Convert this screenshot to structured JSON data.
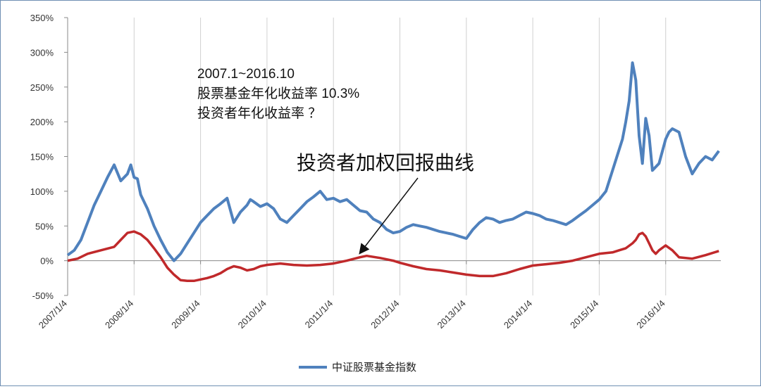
{
  "chart_data": {
    "type": "line",
    "title": "",
    "xlabel": "",
    "ylabel": "",
    "ylim": [
      -50,
      350
    ],
    "xlim": [
      2007.0,
      2016.83
    ],
    "y_ticks": [
      "350%",
      "300%",
      "250%",
      "200%",
      "150%",
      "100%",
      "50%",
      "0%",
      "-50%"
    ],
    "y_tick_values": [
      350,
      300,
      250,
      200,
      150,
      100,
      50,
      0,
      -50
    ],
    "x_ticks": [
      "2007/1/4",
      "2008/1/4",
      "2009/1/4",
      "2010/1/4",
      "2011/1/4",
      "2012/1/4",
      "2013/1/4",
      "2014/1/4",
      "2015/1/4",
      "2016/1/4"
    ],
    "x_tick_values": [
      2007,
      2008,
      2009,
      2010,
      2011,
      2012,
      2013,
      2014,
      2015,
      2016
    ],
    "grid": "vertical",
    "legend_position": "bottom-center",
    "series": [
      {
        "name": "中证股票基金指数",
        "color": "#4f81bd",
        "x": [
          2007.0,
          2007.1,
          2007.2,
          2007.3,
          2007.4,
          2007.5,
          2007.6,
          2007.7,
          2007.8,
          2007.9,
          2007.95,
          2008.0,
          2008.05,
          2008.1,
          2008.15,
          2008.2,
          2008.3,
          2008.4,
          2008.5,
          2008.6,
          2008.7,
          2008.8,
          2008.9,
          2009.0,
          2009.1,
          2009.2,
          2009.3,
          2009.4,
          2009.5,
          2009.6,
          2009.7,
          2009.75,
          2009.8,
          2009.9,
          2010.0,
          2010.1,
          2010.2,
          2010.3,
          2010.4,
          2010.5,
          2010.6,
          2010.7,
          2010.8,
          2010.9,
          2011.0,
          2011.1,
          2011.2,
          2011.3,
          2011.4,
          2011.5,
          2011.6,
          2011.7,
          2011.8,
          2011.9,
          2012.0,
          2012.1,
          2012.2,
          2012.3,
          2012.4,
          2012.5,
          2012.6,
          2012.7,
          2012.8,
          2012.9,
          2013.0,
          2013.1,
          2013.2,
          2013.3,
          2013.4,
          2013.5,
          2013.6,
          2013.7,
          2013.8,
          2013.9,
          2014.0,
          2014.1,
          2014.2,
          2014.3,
          2014.4,
          2014.5,
          2014.6,
          2014.7,
          2014.8,
          2014.9,
          2015.0,
          2015.1,
          2015.2,
          2015.3,
          2015.35,
          2015.4,
          2015.45,
          2015.5,
          2015.55,
          2015.6,
          2015.65,
          2015.7,
          2015.75,
          2015.8,
          2015.9,
          2016.0,
          2016.05,
          2016.1,
          2016.2,
          2016.3,
          2016.4,
          2016.5,
          2016.6,
          2016.7,
          2016.8
        ],
        "y": [
          8,
          15,
          30,
          55,
          80,
          100,
          120,
          138,
          115,
          125,
          138,
          120,
          118,
          95,
          85,
          75,
          50,
          30,
          12,
          0,
          10,
          25,
          40,
          55,
          65,
          75,
          82,
          90,
          55,
          70,
          80,
          88,
          85,
          78,
          82,
          75,
          60,
          55,
          65,
          75,
          85,
          92,
          100,
          88,
          90,
          85,
          88,
          80,
          72,
          70,
          60,
          55,
          45,
          40,
          42,
          48,
          52,
          50,
          48,
          45,
          42,
          40,
          38,
          35,
          32,
          45,
          55,
          62,
          60,
          55,
          58,
          60,
          65,
          70,
          68,
          65,
          60,
          58,
          55,
          52,
          58,
          65,
          72,
          80,
          88,
          100,
          130,
          160,
          175,
          200,
          230,
          285,
          260,
          180,
          140,
          205,
          180,
          130,
          140,
          175,
          185,
          190,
          185,
          150,
          125,
          140,
          150,
          145,
          158
        ]
      },
      {
        "name": "",
        "color": "#c0292b",
        "x": [
          2007.0,
          2007.15,
          2007.3,
          2007.5,
          2007.7,
          2007.8,
          2007.9,
          2008.0,
          2008.1,
          2008.2,
          2008.3,
          2008.4,
          2008.5,
          2008.6,
          2008.7,
          2008.8,
          2008.9,
          2009.0,
          2009.1,
          2009.2,
          2009.3,
          2009.4,
          2009.5,
          2009.6,
          2009.7,
          2009.8,
          2009.9,
          2010.0,
          2010.2,
          2010.4,
          2010.6,
          2010.8,
          2011.0,
          2011.2,
          2011.4,
          2011.5,
          2011.7,
          2011.9,
          2012.0,
          2012.2,
          2012.4,
          2012.6,
          2012.8,
          2013.0,
          2013.2,
          2013.4,
          2013.6,
          2013.8,
          2014.0,
          2014.2,
          2014.4,
          2014.6,
          2014.8,
          2015.0,
          2015.2,
          2015.3,
          2015.4,
          2015.5,
          2015.55,
          2015.6,
          2015.65,
          2015.7,
          2015.75,
          2015.8,
          2015.85,
          2015.9,
          2016.0,
          2016.1,
          2016.2,
          2016.4,
          2016.6,
          2016.8
        ],
        "y": [
          0,
          3,
          10,
          15,
          20,
          30,
          40,
          42,
          38,
          30,
          18,
          5,
          -10,
          -20,
          -28,
          -29,
          -29,
          -27,
          -25,
          -22,
          -18,
          -12,
          -8,
          -10,
          -14,
          -12,
          -8,
          -6,
          -4,
          -6,
          -7,
          -6,
          -4,
          0,
          5,
          7,
          4,
          0,
          -3,
          -8,
          -12,
          -14,
          -17,
          -20,
          -22,
          -22,
          -18,
          -12,
          -7,
          -5,
          -3,
          0,
          5,
          10,
          12,
          15,
          18,
          25,
          30,
          38,
          40,
          35,
          25,
          15,
          10,
          15,
          22,
          15,
          5,
          3,
          8,
          14
        ]
      }
    ]
  },
  "annotations": {
    "note_line1": "2007.1~2016.10",
    "note_line2": "股票基金年化收益率 10.3%",
    "note_line3": "投资者年化收益率    ？",
    "arrow_label": "投资者加权回报曲线"
  },
  "legend": {
    "label": "中证股票基金指数",
    "color": "#4f81bd"
  }
}
